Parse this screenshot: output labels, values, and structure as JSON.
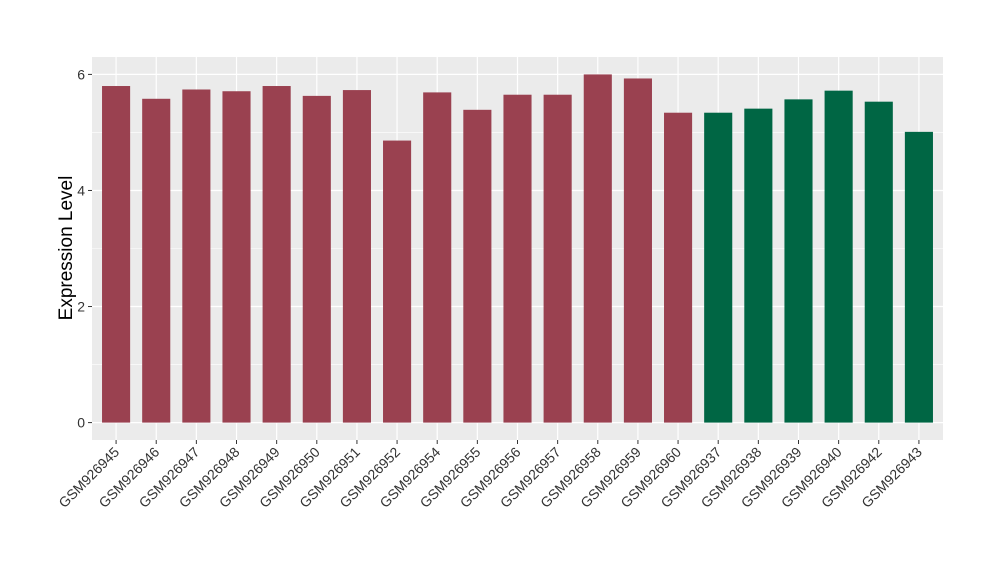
{
  "chart_data": {
    "type": "bar",
    "title": "",
    "xlabel": "",
    "ylabel": "Expression Level",
    "ylim": [
      -0.3,
      6.3
    ],
    "yticks": [
      0,
      2,
      4,
      6
    ],
    "grid": true,
    "legend": "none",
    "colors": {
      "group_a": "#9a4150",
      "group_b": "#006644",
      "panel": "#ebebeb",
      "gridline": "#ffffff"
    },
    "categories": [
      "GSM926945",
      "GSM926946",
      "GSM926947",
      "GSM926948",
      "GSM926949",
      "GSM926950",
      "GSM926951",
      "GSM926952",
      "GSM926954",
      "GSM926955",
      "GSM926956",
      "GSM926957",
      "GSM926958",
      "GSM926959",
      "GSM926960",
      "GSM926937",
      "GSM926938",
      "GSM926939",
      "GSM926940",
      "GSM926942",
      "GSM926943"
    ],
    "values": [
      5.8,
      5.58,
      5.74,
      5.71,
      5.8,
      5.63,
      5.73,
      4.86,
      5.69,
      5.39,
      5.65,
      5.65,
      6.0,
      5.93,
      5.34,
      5.34,
      5.41,
      5.57,
      5.72,
      5.53,
      5.01
    ],
    "groups": [
      "a",
      "a",
      "a",
      "a",
      "a",
      "a",
      "a",
      "a",
      "a",
      "a",
      "a",
      "a",
      "a",
      "a",
      "a",
      "b",
      "b",
      "b",
      "b",
      "b",
      "b"
    ]
  }
}
